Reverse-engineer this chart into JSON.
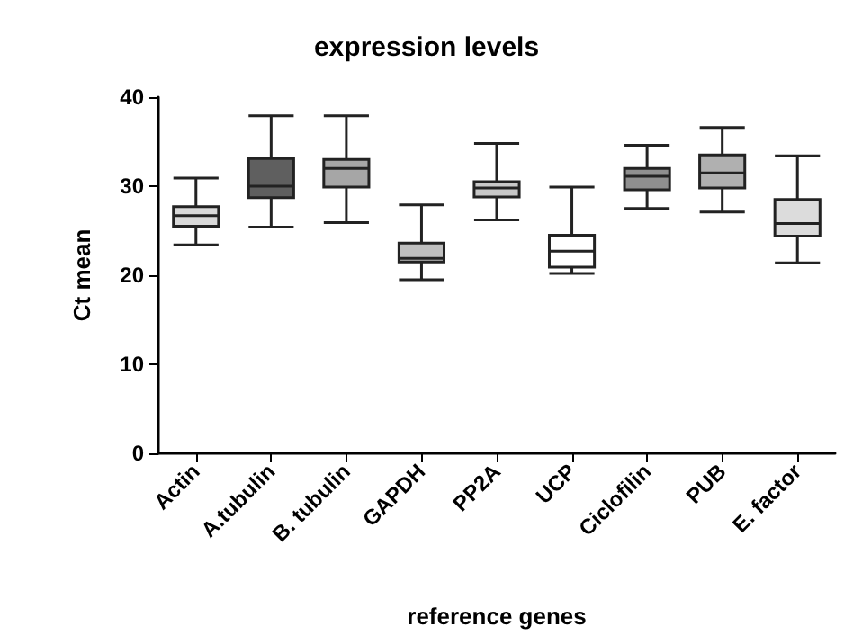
{
  "chart_data": {
    "type": "box",
    "title": "expression levels",
    "xlabel": "reference genes",
    "ylabel": "Ct mean",
    "categories": [
      "Actin",
      "A.tubulin",
      "B. tubulin",
      "GAPDH",
      "PP2A",
      "UCP",
      "Ciclofilin",
      "PUB",
      "E. factor"
    ],
    "colors": [
      "#d9d9d9",
      "#5f5f5f",
      "#a6a6a6",
      "#bfbfbf",
      "#c8c8c8",
      "#ffffff",
      "#8f8f8f",
      "#b0b0b0",
      "#dcdcdc"
    ],
    "boxes": [
      {
        "low": 23.4,
        "q1": 25.5,
        "median": 26.7,
        "q3": 27.7,
        "high": 30.9
      },
      {
        "low": 25.4,
        "q1": 28.7,
        "median": 30.0,
        "q3": 33.1,
        "high": 37.9
      },
      {
        "low": 25.9,
        "q1": 29.9,
        "median": 32.0,
        "q3": 33.0,
        "high": 37.9
      },
      {
        "low": 19.5,
        "q1": 21.5,
        "median": 21.9,
        "q3": 23.6,
        "high": 27.9
      },
      {
        "low": 26.2,
        "q1": 28.8,
        "median": 29.8,
        "q3": 30.5,
        "high": 34.8
      },
      {
        "low": 20.2,
        "q1": 20.9,
        "median": 22.7,
        "q3": 24.5,
        "high": 29.9
      },
      {
        "low": 27.5,
        "q1": 29.6,
        "median": 31.1,
        "q3": 32.0,
        "high": 34.6
      },
      {
        "low": 27.1,
        "q1": 29.8,
        "median": 31.5,
        "q3": 33.5,
        "high": 36.6
      },
      {
        "low": 21.4,
        "q1": 24.4,
        "median": 25.8,
        "q3": 28.5,
        "high": 33.4
      }
    ],
    "ylim": [
      0,
      40
    ],
    "yticks": [
      0,
      10,
      20,
      30,
      40
    ],
    "grid": false
  }
}
